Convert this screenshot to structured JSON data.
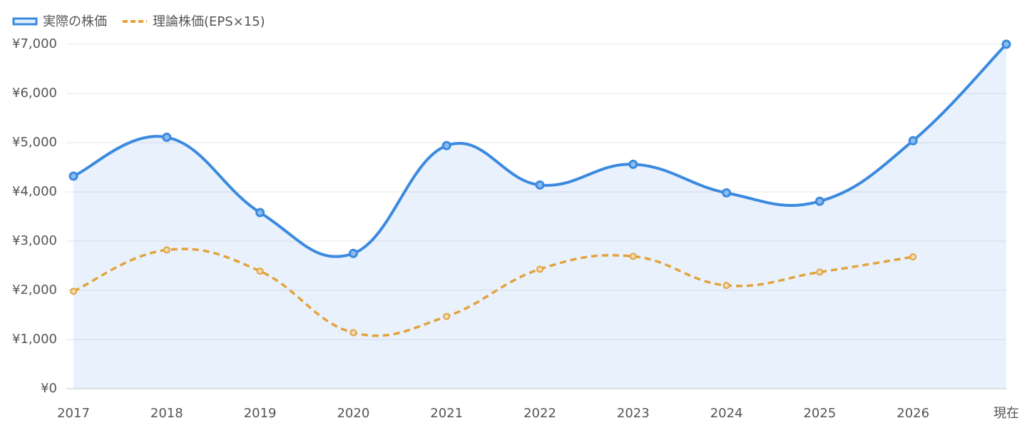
{
  "chart_data": {
    "type": "line",
    "categories": [
      "2017",
      "2018",
      "2019",
      "2020",
      "2021",
      "2022",
      "2023",
      "2024",
      "2025",
      "2026",
      "現在"
    ],
    "series": [
      {
        "name": "実際の株価",
        "color": "#3b8ae0",
        "values": [
          4320,
          5110,
          3580,
          2750,
          4940,
          4140,
          4560,
          3980,
          3810,
          5040,
          7000
        ]
      },
      {
        "name": "理論株価(EPS×15)",
        "color": "#e3a23b",
        "values": [
          1980,
          2820,
          2390,
          1140,
          1470,
          2430,
          2690,
          2100,
          2370,
          2680,
          null
        ]
      }
    ],
    "ylim": [
      0,
      7000
    ],
    "yticks": [
      {
        "value": 0,
        "label": "¥0"
      },
      {
        "value": 1000,
        "label": "¥1,000"
      },
      {
        "value": 2000,
        "label": "¥2,000"
      },
      {
        "value": 3000,
        "label": "¥3,000"
      },
      {
        "value": 4000,
        "label": "¥4,000"
      },
      {
        "value": 5000,
        "label": "¥5,000"
      },
      {
        "value": 6000,
        "label": "¥6,000"
      },
      {
        "value": 7000,
        "label": "¥7,000"
      }
    ],
    "grid": true,
    "legend": "top-left"
  }
}
